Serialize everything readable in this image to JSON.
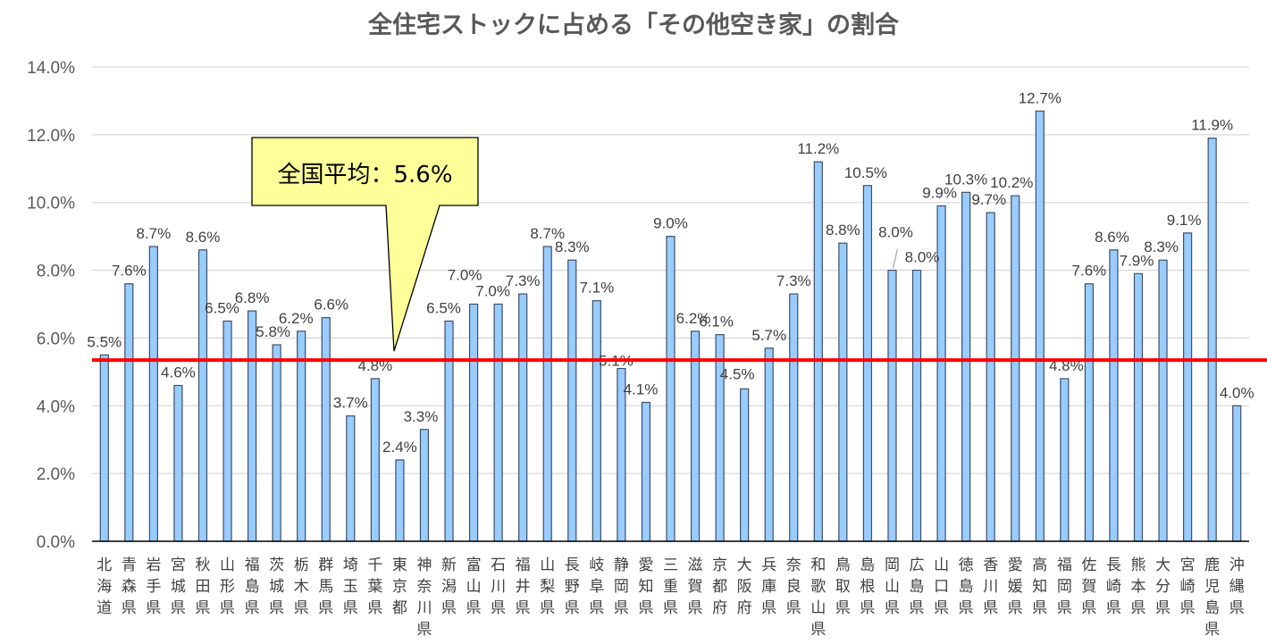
{
  "chart_data": {
    "type": "bar",
    "title": "全住宅ストックに占める「その他空き家」の割合",
    "xlabel": "",
    "ylabel": "",
    "ylim": [
      0,
      14
    ],
    "y_ticks": [
      0,
      2,
      4,
      6,
      8,
      10,
      12,
      14
    ],
    "y_tick_labels": [
      "0.0%",
      "2.0%",
      "4.0%",
      "6.0%",
      "8.0%",
      "10.0%",
      "12.0%",
      "14.0%"
    ],
    "grid": true,
    "legend": "none",
    "bar_color": "#99ccff",
    "categories": [
      "北海道",
      "青森県",
      "岩手県",
      "宮城県",
      "秋田県",
      "山形県",
      "福島県",
      "茨城県",
      "栃木県",
      "群馬県",
      "埼玉県",
      "千葉県",
      "東京都",
      "神奈川県",
      "新潟県",
      "富山県",
      "石川県",
      "福井県",
      "山梨県",
      "長野県",
      "岐阜県",
      "静岡県",
      "愛知県",
      "三重県",
      "滋賀県",
      "京都府",
      "大阪府",
      "兵庫県",
      "奈良県",
      "和歌山県",
      "鳥取県",
      "島根県",
      "岡山県",
      "広島県",
      "山口県",
      "徳島県",
      "香川県",
      "愛媛県",
      "高知県",
      "福岡県",
      "佐賀県",
      "長崎県",
      "熊本県",
      "大分県",
      "宮崎県",
      "鹿児島県",
      "沖縄県"
    ],
    "values": [
      5.5,
      7.6,
      8.7,
      4.6,
      8.6,
      6.5,
      6.8,
      5.8,
      6.2,
      6.6,
      3.7,
      4.8,
      2.4,
      3.3,
      6.5,
      7.0,
      7.0,
      7.3,
      8.7,
      8.3,
      7.1,
      5.1,
      4.1,
      9.0,
      6.2,
      6.1,
      4.5,
      5.7,
      7.3,
      11.2,
      8.8,
      10.5,
      8.0,
      8.0,
      9.9,
      10.3,
      9.7,
      10.2,
      12.7,
      4.8,
      7.6,
      8.6,
      7.9,
      8.3,
      9.1,
      11.9,
      4.0
    ],
    "data_labels": [
      "5.5%",
      "7.6%",
      "8.7%",
      "4.6%",
      "8.6%",
      "6.5%",
      "6.8%",
      "5.8%",
      "6.2%",
      "6.6%",
      "3.7%",
      "4.8%",
      "2.4%",
      "3.3%",
      "6.5%",
      "7.0%",
      "7.0%",
      "7.3%",
      "8.7%",
      "8.3%",
      "7.1%",
      "5.1%",
      "4.1%",
      "9.0%",
      "6.2%",
      "6.1%",
      "4.5%",
      "5.7%",
      "7.3%",
      "11.2%",
      "8.8%",
      "10.5%",
      "8.0%",
      "8.0%",
      "9.9%",
      "10.3%",
      "9.7%",
      "10.2%",
      "12.7%",
      "4.8%",
      "7.6%",
      "8.6%",
      "7.9%",
      "8.3%",
      "9.1%",
      "11.9%",
      "4.0%"
    ],
    "reference_line": {
      "label": "全国平均",
      "value": 5.6,
      "value_label": "5.6%",
      "drawn_level": 5.35,
      "color": "#ff0000"
    },
    "annotation": {
      "text": "全国平均：5.6%",
      "fill": "#ffff99"
    }
  }
}
